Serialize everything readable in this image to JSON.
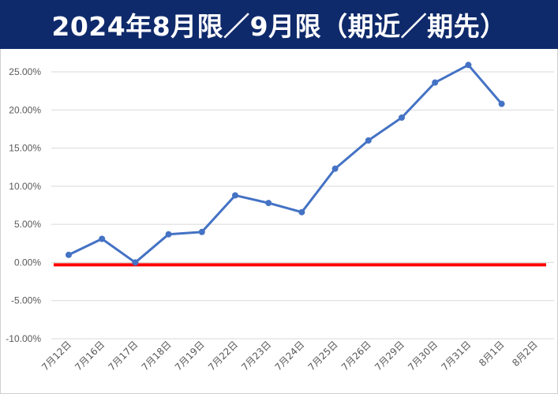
{
  "chart_data": {
    "type": "line",
    "title": "2024年8月限／9月限（期近／期先）",
    "categories": [
      "7月12日",
      "7月16日",
      "7月17日",
      "7月18日",
      "7月19日",
      "7月22日",
      "7月23日",
      "7月24日",
      "7月25日",
      "7月26日",
      "7月29日",
      "7月30日",
      "7月31日",
      "8月1日",
      "8月2日"
    ],
    "series": [
      {
        "values": [
          0.01,
          0.031,
          0.0,
          0.037,
          0.04,
          0.088,
          0.078,
          0.066,
          0.123,
          0.16,
          0.19,
          0.236,
          0.259,
          0.208,
          null
        ],
        "color": "#4472c4"
      }
    ],
    "ylim": [
      -0.1,
      0.25
    ],
    "yticks": [
      0.25,
      0.2,
      0.15,
      0.1,
      0.05,
      0.0,
      -0.05,
      -0.1
    ],
    "ytick_labels": [
      "25.00%",
      "20.00%",
      "15.00%",
      "10.00%",
      "5.00%",
      "0.00%",
      "-5.00%",
      "-10.00%"
    ],
    "grid": true,
    "reference_line": {
      "value": 0.0,
      "color": "#ff0000"
    },
    "gridline_color": "#d9d9d9",
    "title_bar_color": "#0f2a6b"
  }
}
